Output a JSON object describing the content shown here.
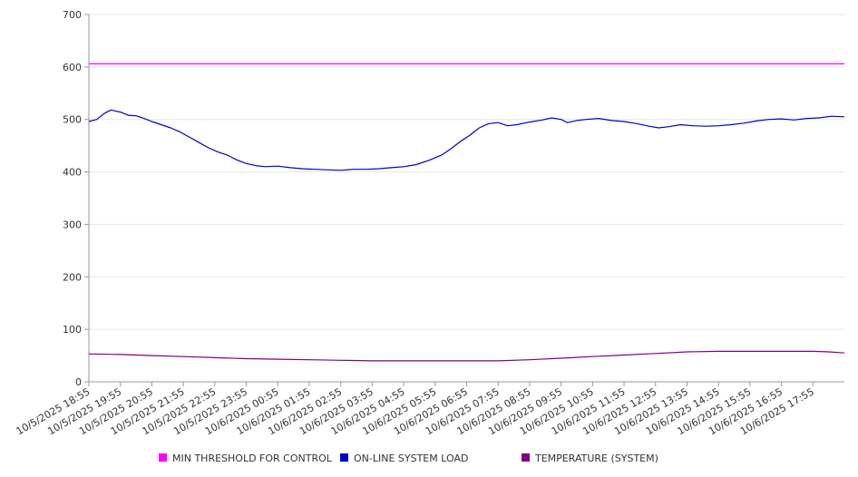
{
  "chart_data": {
    "type": "line",
    "y_ticks": [
      "0",
      "100",
      "200",
      "300",
      "400",
      "500",
      "600",
      "700"
    ],
    "ylim": [
      0,
      700
    ],
    "x_ticks": [
      "10/5/2025 18:55",
      "10/5/2025 19:55",
      "10/5/2025 20:55",
      "10/5/2025 21:55",
      "10/5/2025 22:55",
      "10/5/2025 23:55",
      "10/6/2025 00:55",
      "10/6/2025 01:55",
      "10/6/2025 02:55",
      "10/6/2025 03:55",
      "10/6/2025 04:55",
      "10/6/2025 05:55",
      "10/6/2025 06:55",
      "10/6/2025 07:55",
      "10/6/2025 08:55",
      "10/6/2025 09:55",
      "10/6/2025 10:55",
      "10/6/2025 11:55",
      "10/6/2025 12:55",
      "10/6/2025 13:55",
      "10/6/2025 14:55",
      "10/6/2025 15:55",
      "10/6/2025 16:55",
      "10/6/2025 17:55"
    ],
    "xlim_hours": [
      0,
      24
    ],
    "grid": true,
    "legend_position": "bottom",
    "series": [
      {
        "name": "MIN THRESHOLD FOR CONTROL",
        "color": "#ff00ff",
        "points": [
          [
            0,
            606
          ],
          [
            24,
            606
          ]
        ]
      },
      {
        "name": "ON-LINE SYSTEM LOAD",
        "color": "#0000cc",
        "points": [
          [
            0,
            496
          ],
          [
            0.25,
            500
          ],
          [
            0.5,
            512
          ],
          [
            0.7,
            518
          ],
          [
            1.0,
            514
          ],
          [
            1.25,
            508
          ],
          [
            1.5,
            507
          ],
          [
            1.75,
            502
          ],
          [
            2.0,
            496
          ],
          [
            2.3,
            490
          ],
          [
            2.6,
            484
          ],
          [
            2.9,
            476
          ],
          [
            3.2,
            466
          ],
          [
            3.5,
            456
          ],
          [
            3.8,
            446
          ],
          [
            4.1,
            438
          ],
          [
            4.4,
            432
          ],
          [
            4.7,
            423
          ],
          [
            5.0,
            416
          ],
          [
            5.3,
            412
          ],
          [
            5.6,
            410
          ],
          [
            6.0,
            411
          ],
          [
            6.4,
            408
          ],
          [
            6.8,
            406
          ],
          [
            7.2,
            405
          ],
          [
            7.6,
            404
          ],
          [
            8.0,
            403
          ],
          [
            8.4,
            405
          ],
          [
            8.8,
            405
          ],
          [
            9.2,
            406
          ],
          [
            9.6,
            408
          ],
          [
            10.0,
            410
          ],
          [
            10.4,
            414
          ],
          [
            10.8,
            422
          ],
          [
            11.2,
            432
          ],
          [
            11.5,
            444
          ],
          [
            11.8,
            458
          ],
          [
            12.1,
            470
          ],
          [
            12.4,
            484
          ],
          [
            12.7,
            492
          ],
          [
            13.0,
            494
          ],
          [
            13.3,
            488
          ],
          [
            13.6,
            490
          ],
          [
            14.0,
            495
          ],
          [
            14.4,
            499
          ],
          [
            14.7,
            503
          ],
          [
            15.0,
            500
          ],
          [
            15.2,
            494
          ],
          [
            15.5,
            498
          ],
          [
            15.8,
            500
          ],
          [
            16.2,
            502
          ],
          [
            16.6,
            498
          ],
          [
            17.0,
            496
          ],
          [
            17.4,
            492
          ],
          [
            17.8,
            487
          ],
          [
            18.1,
            484
          ],
          [
            18.4,
            486
          ],
          [
            18.8,
            490
          ],
          [
            19.2,
            488
          ],
          [
            19.6,
            487
          ],
          [
            20.0,
            488
          ],
          [
            20.4,
            490
          ],
          [
            20.8,
            493
          ],
          [
            21.2,
            497
          ],
          [
            21.6,
            500
          ],
          [
            22.0,
            501
          ],
          [
            22.4,
            499
          ],
          [
            22.8,
            502
          ],
          [
            23.2,
            503
          ],
          [
            23.6,
            506
          ],
          [
            24.0,
            505
          ]
        ]
      },
      {
        "name": "TEMPERATURE (SYSTEM)",
        "color": "#800080",
        "points": [
          [
            0,
            53
          ],
          [
            1,
            52
          ],
          [
            2,
            50
          ],
          [
            3,
            48
          ],
          [
            4,
            46
          ],
          [
            5,
            44
          ],
          [
            6,
            43
          ],
          [
            7,
            42
          ],
          [
            8,
            41
          ],
          [
            9,
            40
          ],
          [
            10,
            40
          ],
          [
            11,
            40
          ],
          [
            12,
            40
          ],
          [
            13,
            40
          ],
          [
            14,
            42
          ],
          [
            15,
            45
          ],
          [
            16,
            48
          ],
          [
            17,
            51
          ],
          [
            18,
            54
          ],
          [
            19,
            57
          ],
          [
            20,
            58
          ],
          [
            21,
            58
          ],
          [
            22,
            58
          ],
          [
            23,
            58
          ],
          [
            23.5,
            57
          ],
          [
            24,
            55
          ]
        ]
      }
    ]
  }
}
